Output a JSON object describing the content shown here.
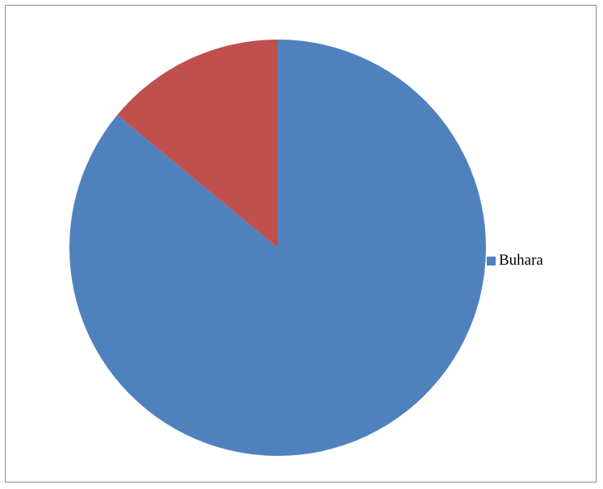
{
  "chart_data": {
    "type": "pie",
    "title": "",
    "slices": [
      {
        "label": "Buhara",
        "value": 86,
        "color": "#4F81BD"
      },
      {
        "label": "",
        "value": 14,
        "color": "#C0504D"
      }
    ],
    "start_angle_deg": 0,
    "direction": "clockwise",
    "legend": {
      "position": "right",
      "entries": [
        {
          "label": "Buhara",
          "color": "#4F81BD"
        }
      ]
    }
  }
}
